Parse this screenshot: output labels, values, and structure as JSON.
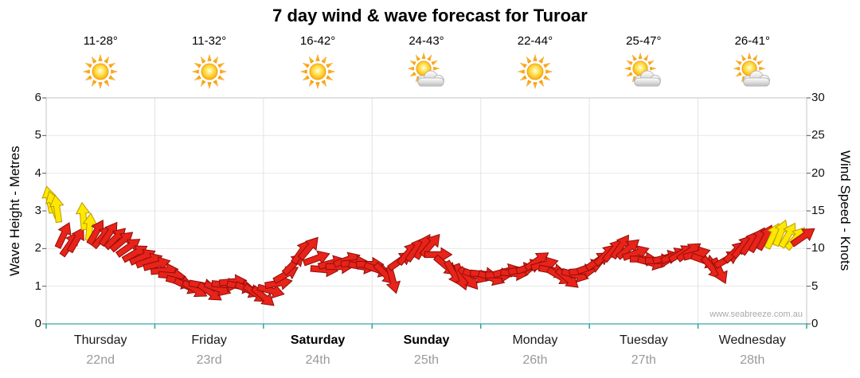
{
  "title": "7 day wind & wave forecast for Turoar",
  "watermark": "www.seabreeze.com.au",
  "axes": {
    "left_label": "Wave Height - Metres",
    "right_label": "Wind Speed - Knots",
    "left_ticks": [
      "0",
      "1",
      "2",
      "3",
      "4",
      "5",
      "6"
    ],
    "right_ticks": [
      "0",
      "5",
      "10",
      "15",
      "20",
      "25",
      "30"
    ]
  },
  "days": [
    {
      "name": "Thursday",
      "date": "22nd",
      "temp": "11-28°",
      "icon": "sunny",
      "bold": false
    },
    {
      "name": "Friday",
      "date": "23rd",
      "temp": "11-32°",
      "icon": "sunny",
      "bold": false
    },
    {
      "name": "Saturday",
      "date": "24th",
      "temp": "16-42°",
      "icon": "sunny",
      "bold": true
    },
    {
      "name": "Sunday",
      "date": "25th",
      "temp": "24-43°",
      "icon": "partly-cloudy",
      "bold": true
    },
    {
      "name": "Monday",
      "date": "26th",
      "temp": "22-44°",
      "icon": "sunny",
      "bold": false
    },
    {
      "name": "Tuesday",
      "date": "27th",
      "temp": "25-47°",
      "icon": "partly-cloudy",
      "bold": false
    },
    {
      "name": "Wednesday",
      "date": "28th",
      "temp": "26-41°",
      "icon": "partly-cloudy",
      "bold": false
    }
  ],
  "chart_data": {
    "type": "wind-arrow-timeseries",
    "title": "7 day wind & wave forecast for Turoar",
    "x_axis": {
      "label": "days",
      "range_days": [
        0,
        7
      ],
      "day_labels": [
        "Thursday 22nd",
        "Friday 23rd",
        "Saturday 24th",
        "Sunday 25th",
        "Monday 26th",
        "Tuesday 27th",
        "Wednesday 28th"
      ]
    },
    "left_axis": {
      "label": "Wave Height - Metres",
      "range": [
        0,
        6
      ]
    },
    "right_axis": {
      "label": "Wind Speed - Knots",
      "range": [
        0,
        30
      ]
    },
    "grid": true,
    "point_format": [
      "day_fraction",
      "wind_speed_knots",
      "arrow_direction_deg",
      "color_code"
    ],
    "color_key": {
      "y": "yellow (stronger wind)",
      "r": "red"
    },
    "arrow_colors": {
      "y": {
        "fill": "#FFE800",
        "stroke": "#B89B00"
      },
      "r": {
        "fill": "#E8231A",
        "stroke": "#8F0E08"
      }
    },
    "points": [
      [
        0.03,
        16.5,
        -12,
        "y"
      ],
      [
        0.065,
        15.9,
        -18,
        "y"
      ],
      [
        0.1,
        15.3,
        -8,
        "y"
      ],
      [
        0.16,
        11.8,
        25,
        "r"
      ],
      [
        0.22,
        10.6,
        35,
        "r"
      ],
      [
        0.28,
        11.2,
        30,
        "r"
      ],
      [
        0.34,
        14.3,
        -5,
        "y"
      ],
      [
        0.4,
        12.9,
        5,
        "y"
      ],
      [
        0.46,
        12.2,
        30,
        "r"
      ],
      [
        0.52,
        11.6,
        40,
        "r"
      ],
      [
        0.58,
        12.0,
        35,
        "r"
      ],
      [
        0.64,
        11.4,
        45,
        "r"
      ],
      [
        0.7,
        11.0,
        50,
        "r"
      ],
      [
        0.76,
        10.2,
        55,
        "r"
      ],
      [
        0.82,
        9.4,
        60,
        "r"
      ],
      [
        0.89,
        8.9,
        65,
        "r"
      ],
      [
        0.95,
        8.4,
        70,
        "r"
      ],
      [
        1.02,
        7.9,
        75,
        "r"
      ],
      [
        1.09,
        7.1,
        85,
        "r"
      ],
      [
        1.16,
        6.4,
        95,
        "r"
      ],
      [
        1.23,
        5.6,
        105,
        "r"
      ],
      [
        1.3,
        5.0,
        115,
        "r"
      ],
      [
        1.37,
        4.6,
        120,
        "r"
      ],
      [
        1.44,
        5.1,
        100,
        "r"
      ],
      [
        1.51,
        4.2,
        125,
        "r"
      ],
      [
        1.58,
        4.7,
        110,
        "r"
      ],
      [
        1.65,
        5.2,
        95,
        "r"
      ],
      [
        1.72,
        5.6,
        85,
        "r"
      ],
      [
        1.79,
        5.0,
        100,
        "r"
      ],
      [
        1.86,
        4.5,
        115,
        "r"
      ],
      [
        1.93,
        4.0,
        125,
        "r"
      ],
      [
        2.0,
        3.6,
        130,
        "r"
      ],
      [
        2.07,
        4.4,
        105,
        "r"
      ],
      [
        2.14,
        5.4,
        80,
        "r"
      ],
      [
        2.21,
        6.6,
        60,
        "r"
      ],
      [
        2.28,
        8.0,
        45,
        "r"
      ],
      [
        2.35,
        9.6,
        35,
        "r"
      ],
      [
        2.42,
        10.1,
        40,
        "r"
      ],
      [
        2.49,
        8.7,
        70,
        "r"
      ],
      [
        2.56,
        7.2,
        95,
        "r"
      ],
      [
        2.63,
        8.1,
        75,
        "r"
      ],
      [
        2.7,
        7.6,
        90,
        "r"
      ],
      [
        2.77,
        8.5,
        70,
        "r"
      ],
      [
        2.84,
        8.1,
        85,
        "r"
      ],
      [
        2.91,
        7.6,
        100,
        "r"
      ],
      [
        2.98,
        7.9,
        90,
        "r"
      ],
      [
        3.05,
        7.2,
        110,
        "r"
      ],
      [
        3.12,
        6.6,
        135,
        "r"
      ],
      [
        3.19,
        5.8,
        165,
        "r"
      ],
      [
        3.26,
        8.4,
        55,
        "r"
      ],
      [
        3.33,
        9.4,
        40,
        "r"
      ],
      [
        3.4,
        9.9,
        35,
        "r"
      ],
      [
        3.47,
        10.3,
        30,
        "r"
      ],
      [
        3.54,
        10.5,
        40,
        "r"
      ],
      [
        3.61,
        9.2,
        90,
        "r"
      ],
      [
        3.68,
        7.7,
        130,
        "r"
      ],
      [
        3.75,
        6.7,
        150,
        "r"
      ],
      [
        3.82,
        6.2,
        160,
        "r"
      ],
      [
        3.89,
        6.0,
        140,
        "r"
      ],
      [
        3.96,
        6.4,
        110,
        "r"
      ],
      [
        4.03,
        6.6,
        95,
        "r"
      ],
      [
        4.1,
        6.1,
        110,
        "r"
      ],
      [
        4.17,
        6.5,
        90,
        "r"
      ],
      [
        4.24,
        7.0,
        75,
        "r"
      ],
      [
        4.31,
        6.7,
        95,
        "r"
      ],
      [
        4.38,
        7.2,
        80,
        "r"
      ],
      [
        4.45,
        7.6,
        70,
        "r"
      ],
      [
        4.52,
        8.4,
        55,
        "r"
      ],
      [
        4.59,
        7.9,
        75,
        "r"
      ],
      [
        4.66,
        7.1,
        100,
        "r"
      ],
      [
        4.73,
        6.3,
        120,
        "r"
      ],
      [
        4.8,
        6.0,
        130,
        "r"
      ],
      [
        4.87,
        6.5,
        105,
        "r"
      ],
      [
        4.94,
        7.0,
        85,
        "r"
      ],
      [
        5.01,
        7.6,
        70,
        "r"
      ],
      [
        5.08,
        8.4,
        55,
        "r"
      ],
      [
        5.15,
        9.2,
        45,
        "r"
      ],
      [
        5.22,
        9.8,
        40,
        "r"
      ],
      [
        5.29,
        10.3,
        35,
        "r"
      ],
      [
        5.36,
        10.0,
        50,
        "r"
      ],
      [
        5.43,
        9.4,
        70,
        "r"
      ],
      [
        5.5,
        8.6,
        90,
        "r"
      ],
      [
        5.57,
        8.1,
        105,
        "r"
      ],
      [
        5.64,
        8.4,
        90,
        "r"
      ],
      [
        5.71,
        8.8,
        75,
        "r"
      ],
      [
        5.78,
        9.1,
        65,
        "r"
      ],
      [
        5.85,
        9.4,
        60,
        "r"
      ],
      [
        5.92,
        9.6,
        55,
        "r"
      ],
      [
        5.99,
        9.3,
        75,
        "r"
      ],
      [
        6.06,
        8.4,
        110,
        "r"
      ],
      [
        6.13,
        7.4,
        140,
        "r"
      ],
      [
        6.2,
        7.0,
        155,
        "r"
      ],
      [
        6.27,
        8.6,
        60,
        "r"
      ],
      [
        6.34,
        9.6,
        45,
        "r"
      ],
      [
        6.41,
        10.3,
        40,
        "r"
      ],
      [
        6.48,
        10.8,
        35,
        "r"
      ],
      [
        6.55,
        11.2,
        30,
        "r"
      ],
      [
        6.62,
        11.5,
        28,
        "r"
      ],
      [
        6.69,
        11.7,
        25,
        "y"
      ],
      [
        6.76,
        12.1,
        22,
        "y"
      ],
      [
        6.83,
        11.8,
        30,
        "y"
      ],
      [
        6.9,
        11.4,
        40,
        "y"
      ],
      [
        6.97,
        11.6,
        55,
        "r"
      ]
    ]
  }
}
